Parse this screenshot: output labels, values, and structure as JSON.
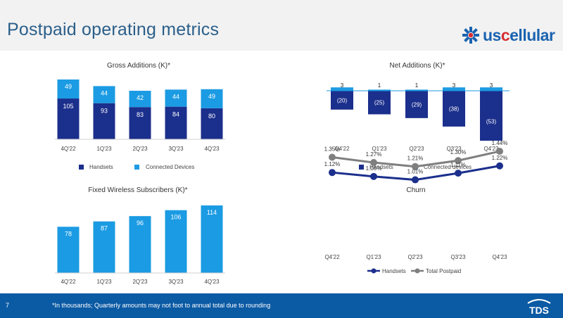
{
  "page": {
    "title": "Postpaid operating metrics",
    "page_number": "7",
    "footnote": "*In thousands; Quarterly amounts may not foot to annual total due to rounding",
    "logo_prefix": "us",
    "logo_accent": "c",
    "logo_suffix": "ellular",
    "footer_logo": "TDS"
  },
  "colors": {
    "navy": "#1b2f8c",
    "light_blue": "#1b9be3",
    "gray": "#7f7f7f",
    "header_title": "#2b5f8a",
    "footer_bg": "#0b5aa4",
    "logo_blue": "#1a63b0",
    "logo_red": "#d62c30"
  },
  "chart_data": [
    {
      "id": "gross",
      "type": "bar",
      "stacked": true,
      "title": "Gross Additions (K)*",
      "categories": [
        "4Q'22",
        "1Q'23",
        "2Q'23",
        "3Q'23",
        "4Q'23"
      ],
      "series": [
        {
          "name": "Handsets",
          "values": [
            105,
            93,
            83,
            84,
            80
          ],
          "labels": [
            "105",
            "93",
            "83",
            "84",
            "80"
          ],
          "color": "#1b2f8c"
        },
        {
          "name": "Connected Devices",
          "values": [
            49,
            44,
            42,
            44,
            49
          ],
          "labels": [
            "49",
            "44",
            "42",
            "44",
            "49"
          ],
          "color": "#1b9be3"
        }
      ],
      "legend": "bottom"
    },
    {
      "id": "net",
      "type": "bar",
      "stacked": true,
      "title": "Net Additions (K)*",
      "categories": [
        "Q4'22",
        "Q1'23",
        "Q2'23",
        "Q3'23",
        "Q4'23"
      ],
      "series": [
        {
          "name": "Handsets",
          "values": [
            -20,
            -25,
            -29,
            -38,
            -53
          ],
          "labels": [
            "(20)",
            "(25)",
            "(29)",
            "(38)",
            "(53)"
          ],
          "color": "#1b2f8c"
        },
        {
          "name": "Connected devices",
          "values": [
            3,
            1,
            1,
            3,
            3
          ],
          "labels": [
            "3",
            "1",
            "1",
            "3",
            "3"
          ],
          "color": "#1b9be3"
        }
      ],
      "legend": "bottom"
    },
    {
      "id": "fws",
      "type": "bar",
      "title": "Fixed Wireless Subscribers (K)*",
      "categories": [
        "4Q'22",
        "1Q'23",
        "2Q'23",
        "3Q'23",
        "4Q'23"
      ],
      "series": [
        {
          "name": "Fixed Wireless Subscribers",
          "values": [
            78,
            87,
            96,
            106,
            114
          ],
          "labels": [
            "78",
            "87",
            "96",
            "106",
            "114"
          ],
          "color": "#1b9be3"
        }
      ]
    },
    {
      "id": "churn",
      "type": "line",
      "title": "Churn",
      "categories": [
        "Q4'22",
        "Q1'23",
        "Q2'23",
        "Q3'23",
        "Q4'23"
      ],
      "series": [
        {
          "name": "Handsets",
          "values": [
            1.12,
            1.06,
            1.01,
            1.11,
            1.22
          ],
          "labels": [
            "1.12%",
            "1.06%",
            "1.01%",
            "1.11%",
            "1.22%"
          ],
          "color": "#1b2f8c"
        },
        {
          "name": "Total Postpaid",
          "values": [
            1.35,
            1.27,
            1.21,
            1.3,
            1.44
          ],
          "labels": [
            "1.35%",
            "1.27%",
            "1.21%",
            "1.30%",
            "1.44%"
          ],
          "color": "#7f7f7f"
        }
      ],
      "legend": "bottom"
    }
  ]
}
